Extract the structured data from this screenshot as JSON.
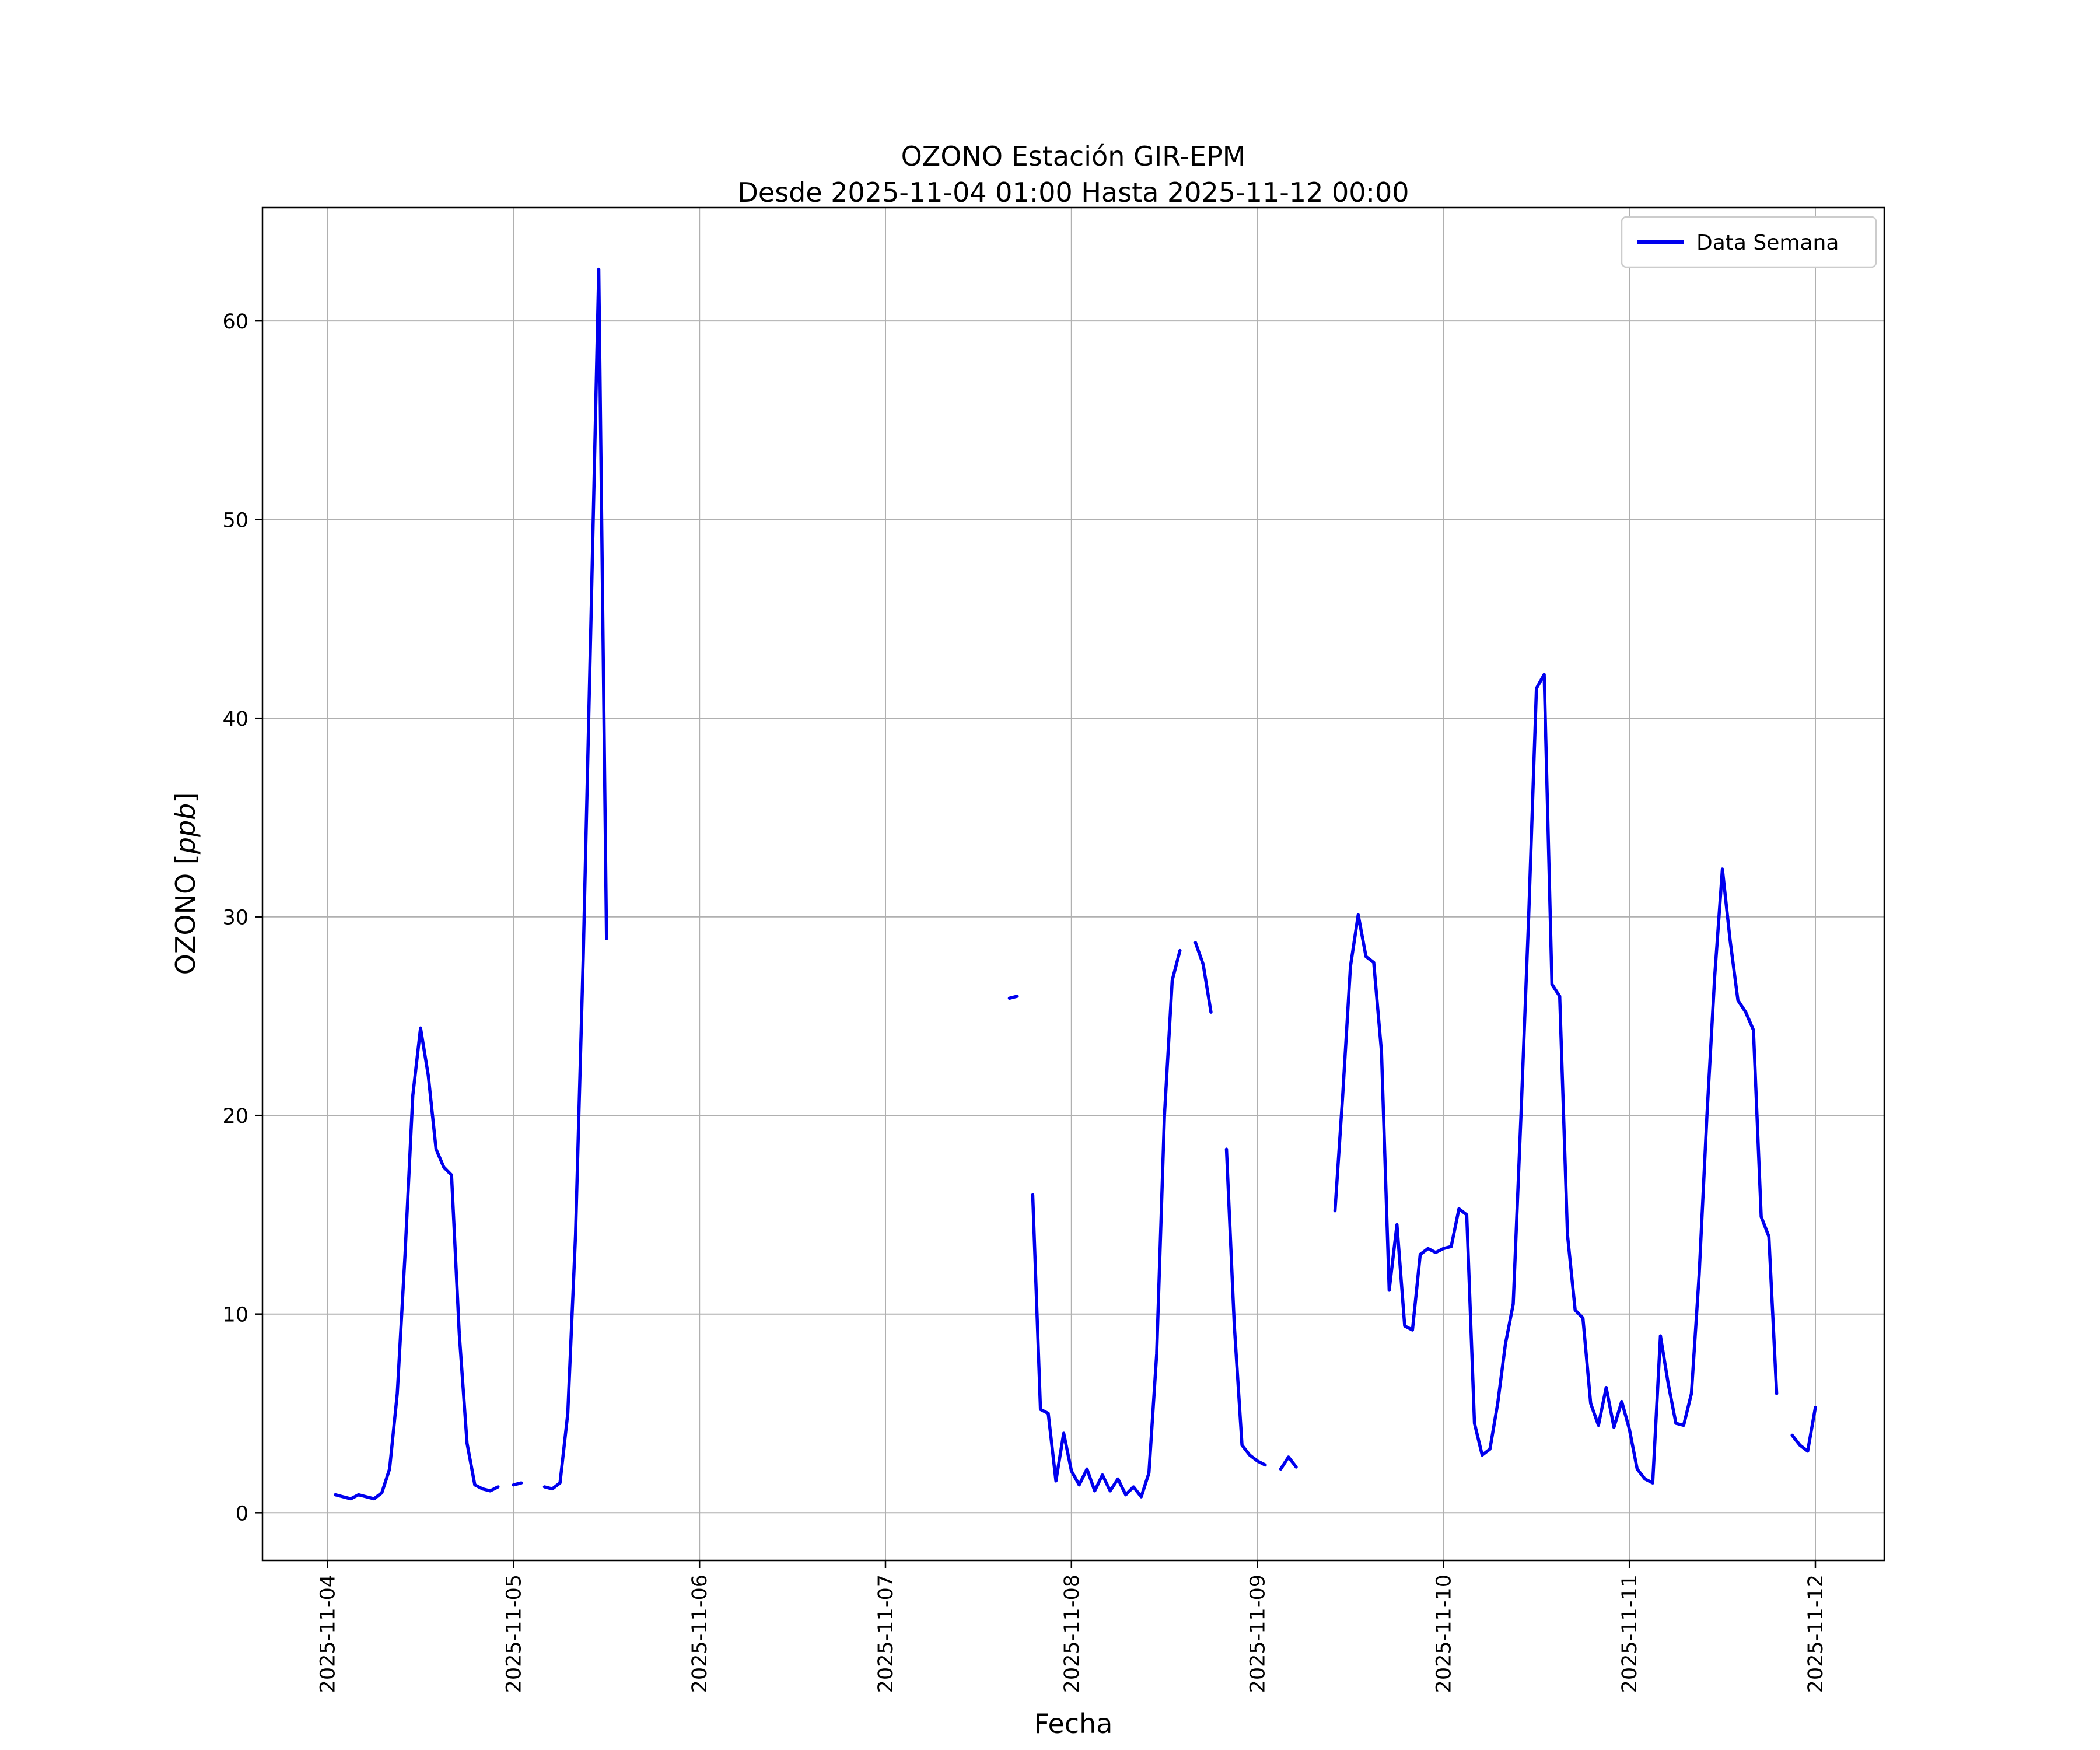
{
  "figure": {
    "ylabel_prefix": "OZONO [",
    "ylabel_italic": "ppb",
    "ylabel_suffix": "]"
  },
  "chart_data": {
    "type": "line",
    "title": "OZONO Estación GIR-EPM",
    "subtitle": "Desde 2025-11-04 01:00 Hasta 2025-11-12 00:00",
    "xlabel": "Fecha",
    "ylabel": "OZONO [ppb]",
    "grid": true,
    "legend": {
      "position": "upper right",
      "entries": [
        "Data Semana"
      ]
    },
    "x_start": "2025-11-04 00:00",
    "step_hours": 1,
    "xtick_days": [
      0,
      1,
      2,
      3,
      4,
      5,
      6,
      7,
      8
    ],
    "xtick_labels": [
      "2025-11-04",
      "2025-11-05",
      "2025-11-06",
      "2025-11-07",
      "2025-11-08",
      "2025-11-09",
      "2025-11-10",
      "2025-11-11",
      "2025-11-12"
    ],
    "ytick_values": [
      0,
      10,
      20,
      30,
      40,
      50,
      60
    ],
    "ytick_labels": [
      "0",
      "10",
      "20",
      "30",
      "40",
      "50",
      "60"
    ],
    "xlim_days": [
      -0.35,
      8.37
    ],
    "ylim": [
      -2.4,
      65.7
    ],
    "colors": {
      "line": "#0000ee",
      "grid": "#b0b0b0",
      "spine": "#000000",
      "legend_edge": "#cccccc",
      "background": "#ffffff"
    },
    "series": [
      {
        "name": "Data Semana",
        "color": "#0000ee",
        "segments": [
          {
            "start_hour": 1,
            "values": [
              0.9,
              0.8,
              0.7,
              0.9,
              0.8,
              0.7,
              1.0,
              2.2,
              6.0,
              13.0,
              21.0,
              24.4,
              22.0,
              18.3,
              17.4,
              17.0,
              9.0,
              3.5,
              1.4,
              1.2,
              1.1,
              1.3
            ]
          },
          {
            "start_hour": 24,
            "values": [
              1.4,
              1.5
            ]
          },
          {
            "start_hour": 28,
            "values": [
              1.3,
              1.2,
              1.5,
              5.0,
              14.0,
              28.0,
              45.0,
              62.6,
              28.9
            ]
          },
          {
            "start_hour": 88,
            "values": [
              25.9,
              26.0
            ]
          },
          {
            "start_hour": 91,
            "values": [
              16.0,
              5.2,
              5.0,
              1.6,
              4.0,
              2.1,
              1.4,
              2.2,
              1.1,
              1.9,
              1.1,
              1.7,
              0.9,
              1.3,
              0.8,
              2.0,
              8.0,
              20.0,
              26.8,
              28.3
            ]
          },
          {
            "start_hour": 112,
            "values": [
              28.7,
              27.6,
              25.2
            ]
          },
          {
            "start_hour": 116,
            "values": [
              18.3,
              9.5,
              3.4,
              2.9,
              2.6,
              2.4
            ]
          },
          {
            "start_hour": 123,
            "values": [
              2.2,
              2.8,
              2.3
            ]
          },
          {
            "start_hour": 130,
            "values": [
              15.2,
              21.0,
              27.5,
              30.1,
              28.0,
              27.7,
              23.2,
              11.2,
              14.5,
              9.4,
              9.2,
              13.0,
              13.3,
              13.1,
              13.3,
              13.4,
              15.3,
              15.0,
              4.5,
              2.9,
              3.2,
              5.5,
              8.5,
              10.5,
              20.0,
              30.0,
              41.5,
              42.2,
              26.6,
              26.0,
              14.0,
              10.2,
              9.8,
              5.5,
              4.4,
              6.3,
              4.3,
              5.6,
              4.2,
              2.2,
              1.7,
              1.5,
              8.9,
              6.5,
              4.5,
              4.4,
              6.0,
              12.0,
              20.0,
              27.0,
              32.4,
              28.8,
              25.8,
              25.2,
              24.3,
              14.9,
              13.9,
              6.0
            ]
          },
          {
            "start_hour": 189,
            "values": [
              3.9,
              3.4,
              3.1,
              5.3
            ]
          }
        ]
      }
    ]
  }
}
